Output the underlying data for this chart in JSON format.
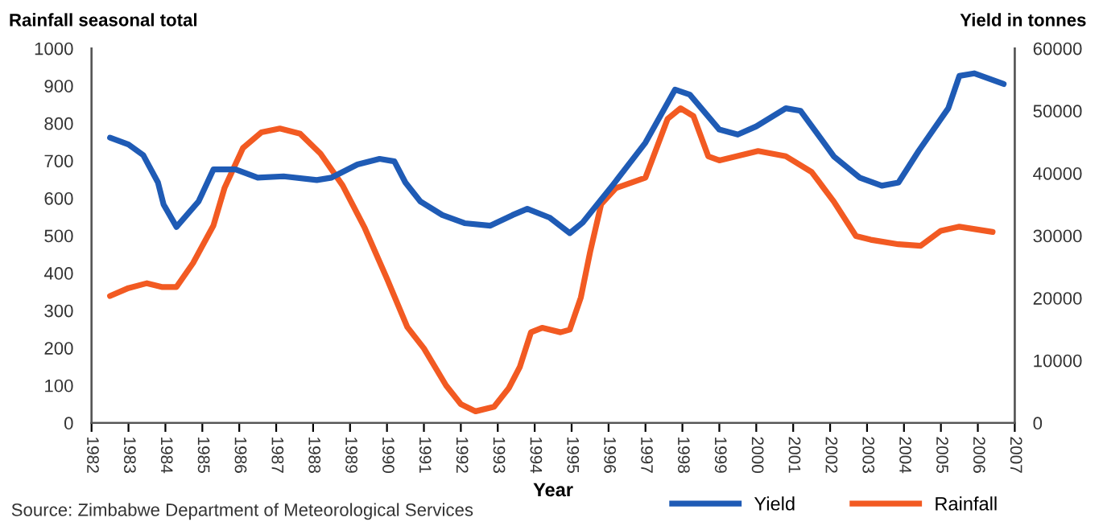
{
  "chart_data": {
    "type": "line",
    "ylabel": "Rainfall seasonal total",
    "y2label": "Yield in tonnes",
    "xlabel": "Year",
    "annotations": [
      "Source: Zimbabwe Department of Meteorological Services"
    ],
    "xlim": [
      1982,
      2007
    ],
    "xticks": [
      1982,
      1983,
      1984,
      1985,
      1986,
      1987,
      1988,
      1989,
      1990,
      1991,
      1992,
      1993,
      1994,
      1995,
      1996,
      1997,
      1998,
      1999,
      2000,
      2001,
      2002,
      2003,
      2004,
      2005,
      2006,
      2007
    ],
    "ylim": [
      0,
      1000
    ],
    "yticks": [
      0,
      100,
      200,
      300,
      400,
      500,
      600,
      700,
      800,
      900,
      1000
    ],
    "y2lim": [
      0,
      60000
    ],
    "y2ticks": [
      0,
      10000,
      20000,
      30000,
      40000,
      50000,
      60000
    ],
    "grid": false,
    "legend": "bottom right",
    "line_style": "solid",
    "marker": "none",
    "series": [
      {
        "name": "Yield",
        "color": "#1f5bb5",
        "axis": "y2",
        "x": [
          1982.5,
          1983.0,
          1983.4,
          1983.8,
          1983.95,
          1984.3,
          1984.9,
          1985.3,
          1985.9,
          1986.5,
          1987.2,
          1988.1,
          1988.5,
          1989.2,
          1989.8,
          1990.2,
          1990.5,
          1990.9,
          1991.5,
          1992.1,
          1992.8,
          1993.4,
          1993.8,
          1994.4,
          1994.95,
          1995.3,
          1996.1,
          1997.0,
          1997.8,
          1998.2,
          1999.0,
          1999.5,
          2000.0,
          2000.8,
          2001.2,
          2002.1,
          2002.8,
          2003.4,
          2003.85,
          2004.4,
          2005.2,
          2005.5,
          2005.9,
          2006.7
        ],
        "values": [
          45700,
          44600,
          42900,
          38500,
          35000,
          31400,
          35500,
          40600,
          40600,
          39300,
          39500,
          38900,
          39300,
          41400,
          42300,
          41900,
          38500,
          35500,
          33300,
          32000,
          31600,
          33300,
          34300,
          32900,
          30400,
          32100,
          38000,
          44900,
          53400,
          52600,
          47000,
          46200,
          47500,
          50400,
          50000,
          42700,
          39300,
          38000,
          38500,
          43600,
          50400,
          55600,
          56000,
          54300
        ]
      },
      {
        "name": "Rainfall",
        "color": "#f25a22",
        "axis": "y",
        "x": [
          1982.5,
          1983.0,
          1983.5,
          1983.9,
          1984.3,
          1984.75,
          1985.3,
          1985.6,
          1986.1,
          1986.6,
          1987.1,
          1987.65,
          1988.2,
          1988.8,
          1989.4,
          1990.0,
          1990.55,
          1991.0,
          1991.6,
          1992.0,
          1992.4,
          1992.9,
          1993.3,
          1993.6,
          1993.9,
          1994.2,
          1994.7,
          1994.95,
          1995.25,
          1995.5,
          1995.8,
          1996.2,
          1997.0,
          1997.6,
          1997.95,
          1998.3,
          1998.7,
          1999.0,
          2000.05,
          2000.8,
          2001.5,
          2002.1,
          2002.7,
          2003.1,
          2003.85,
          2004.45,
          2005.0,
          2005.5,
          2006.4
        ],
        "values": [
          339,
          360,
          373,
          363,
          363,
          427,
          527,
          627,
          734,
          776,
          786,
          772,
          719,
          634,
          520,
          385,
          256,
          199,
          100,
          50,
          31,
          43,
          93,
          150,
          242,
          254,
          242,
          249,
          335,
          456,
          584,
          627,
          655,
          812,
          840,
          819,
          712,
          701,
          726,
          712,
          670,
          591,
          499,
          489,
          477,
          473,
          513,
          524,
          510
        ]
      }
    ]
  }
}
